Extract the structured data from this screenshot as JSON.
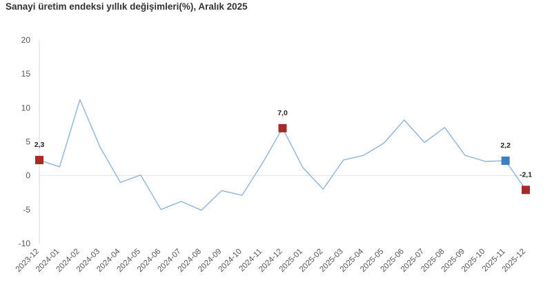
{
  "chart_data": {
    "type": "line",
    "title": "Sanayi üretim endeksi yıllık değişimleri(%), Aralık 2025",
    "xlabel": "",
    "ylabel": "",
    "ylim": [
      -10,
      20
    ],
    "yticks": [
      "20",
      "15",
      "10",
      "5",
      "0",
      "-5",
      "-10"
    ],
    "categories": [
      "2023-12",
      "2024-01",
      "2024-02",
      "2024-03",
      "2024-04",
      "2024-05",
      "2024-06",
      "2024-07",
      "2024-08",
      "2024-09",
      "2024-10",
      "2024-11",
      "2024-12",
      "2025-01",
      "2025-02",
      "2025-03",
      "2025-04",
      "2025-05",
      "2025-06",
      "2025-07",
      "2025-08",
      "2025-09",
      "2025-10",
      "2025-11",
      "2025-12"
    ],
    "series": [
      {
        "values": [
          2.3,
          1.3,
          11.2,
          4.2,
          -1.0,
          0.1,
          -5.0,
          -3.8,
          -5.1,
          -2.2,
          -2.9,
          1.8,
          7.0,
          1.2,
          -2.0,
          2.3,
          3.0,
          4.8,
          8.2,
          4.9,
          7.1,
          3.0,
          2.1,
          2.2,
          -2.1
        ],
        "color": "#8fb3d9"
      }
    ],
    "highlights": [
      {
        "index": 0,
        "label": "2,3",
        "color": "#a52a2a"
      },
      {
        "index": 12,
        "label": "7,0",
        "color": "#a52a2a"
      },
      {
        "index": 23,
        "label": "2,2",
        "color": "#3f7fc0"
      },
      {
        "index": 24,
        "label": "-2,1",
        "color": "#a52a2a"
      }
    ],
    "grid": false,
    "zero_line": true,
    "legend": "none"
  }
}
